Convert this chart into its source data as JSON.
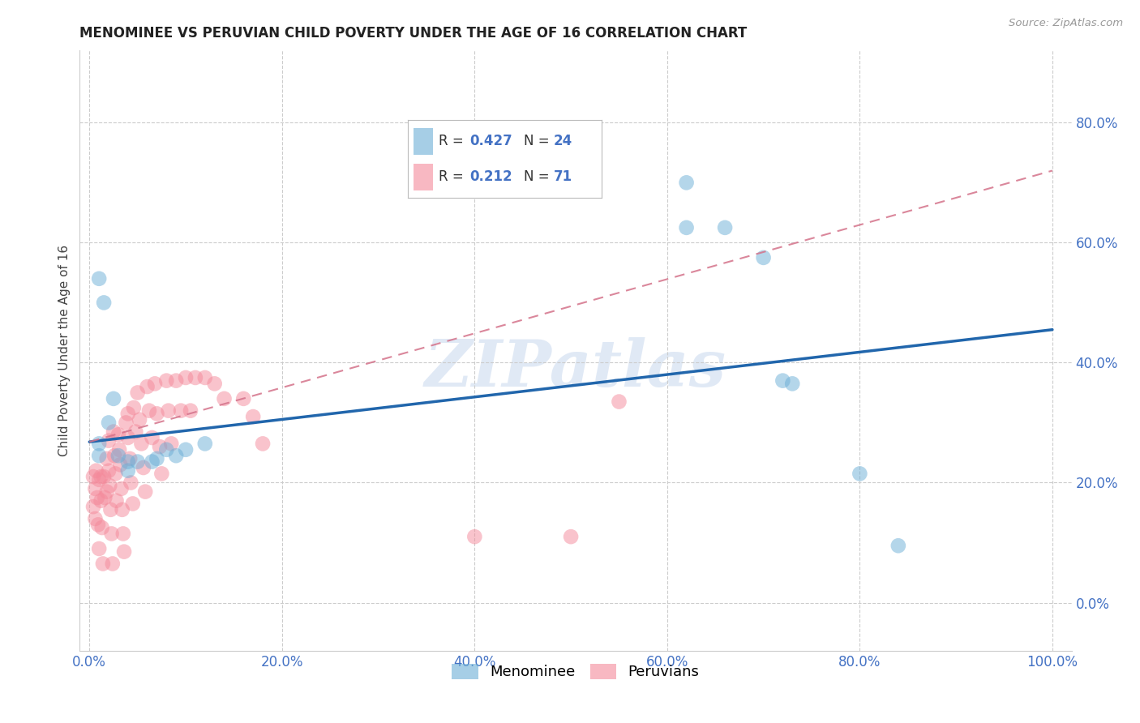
{
  "title": "MENOMINEE VS PERUVIAN CHILD POVERTY UNDER THE AGE OF 16 CORRELATION CHART",
  "source": "Source: ZipAtlas.com",
  "ylabel": "Child Poverty Under the Age of 16",
  "xlim": [
    -0.01,
    1.02
  ],
  "ylim": [
    -0.08,
    0.92
  ],
  "xticks": [
    0.0,
    0.2,
    0.4,
    0.6,
    0.8,
    1.0
  ],
  "yticks": [
    0.0,
    0.2,
    0.4,
    0.6,
    0.8
  ],
  "xtick_labels": [
    "0.0%",
    "20.0%",
    "40.0%",
    "60.0%",
    "80.0%",
    "100.0%"
  ],
  "ytick_labels": [
    "0.0%",
    "20.0%",
    "40.0%",
    "60.0%",
    "80.0%"
  ],
  "watermark_text": "ZIPatlas",
  "menominee_color": "#6baed6",
  "peruvian_color": "#f4899a",
  "blue_line_color": "#2166ac",
  "pink_line_color": "#d4728a",
  "grid_color": "#cccccc",
  "background_color": "#ffffff",
  "tick_color": "#4472c4",
  "title_color": "#222222",
  "source_color": "#999999",
  "ylabel_color": "#444444",
  "menominee_x": [
    0.01,
    0.015,
    0.025,
    0.01,
    0.01,
    0.02,
    0.03,
    0.04,
    0.04,
    0.05,
    0.065,
    0.07,
    0.08,
    0.09,
    0.1,
    0.12,
    0.62,
    0.66,
    0.7,
    0.72,
    0.73,
    0.8,
    0.84,
    0.62
  ],
  "menominee_y": [
    0.54,
    0.5,
    0.34,
    0.265,
    0.245,
    0.3,
    0.245,
    0.235,
    0.22,
    0.235,
    0.235,
    0.24,
    0.255,
    0.245,
    0.255,
    0.265,
    0.7,
    0.625,
    0.575,
    0.37,
    0.365,
    0.215,
    0.095,
    0.625
  ],
  "peruvian_x": [
    0.004,
    0.004,
    0.006,
    0.006,
    0.007,
    0.008,
    0.009,
    0.01,
    0.01,
    0.012,
    0.012,
    0.013,
    0.014,
    0.015,
    0.016,
    0.018,
    0.018,
    0.02,
    0.02,
    0.021,
    0.022,
    0.023,
    0.024,
    0.025,
    0.026,
    0.027,
    0.028,
    0.03,
    0.031,
    0.032,
    0.033,
    0.034,
    0.035,
    0.036,
    0.038,
    0.04,
    0.04,
    0.042,
    0.043,
    0.045,
    0.046,
    0.048,
    0.05,
    0.052,
    0.054,
    0.056,
    0.058,
    0.06,
    0.062,
    0.065,
    0.068,
    0.07,
    0.073,
    0.075,
    0.08,
    0.082,
    0.085,
    0.09,
    0.095,
    0.1,
    0.105,
    0.11,
    0.12,
    0.13,
    0.14,
    0.16,
    0.17,
    0.18,
    0.4,
    0.5,
    0.55
  ],
  "peruvian_y": [
    0.21,
    0.16,
    0.19,
    0.14,
    0.22,
    0.175,
    0.13,
    0.205,
    0.09,
    0.21,
    0.17,
    0.125,
    0.065,
    0.21,
    0.175,
    0.24,
    0.185,
    0.27,
    0.22,
    0.195,
    0.155,
    0.115,
    0.065,
    0.285,
    0.245,
    0.215,
    0.17,
    0.28,
    0.255,
    0.23,
    0.19,
    0.155,
    0.115,
    0.085,
    0.3,
    0.315,
    0.275,
    0.24,
    0.2,
    0.165,
    0.325,
    0.285,
    0.35,
    0.305,
    0.265,
    0.225,
    0.185,
    0.36,
    0.32,
    0.275,
    0.365,
    0.315,
    0.26,
    0.215,
    0.37,
    0.32,
    0.265,
    0.37,
    0.32,
    0.375,
    0.32,
    0.375,
    0.375,
    0.365,
    0.34,
    0.34,
    0.31,
    0.265,
    0.11,
    0.11,
    0.335
  ],
  "blue_line_x0": 0.0,
  "blue_line_y0": 0.268,
  "blue_line_x1": 1.0,
  "blue_line_y1": 0.455,
  "pink_line_x0": 0.0,
  "pink_line_y0": 0.268,
  "pink_line_x1": 1.0,
  "pink_line_y1": 0.72
}
